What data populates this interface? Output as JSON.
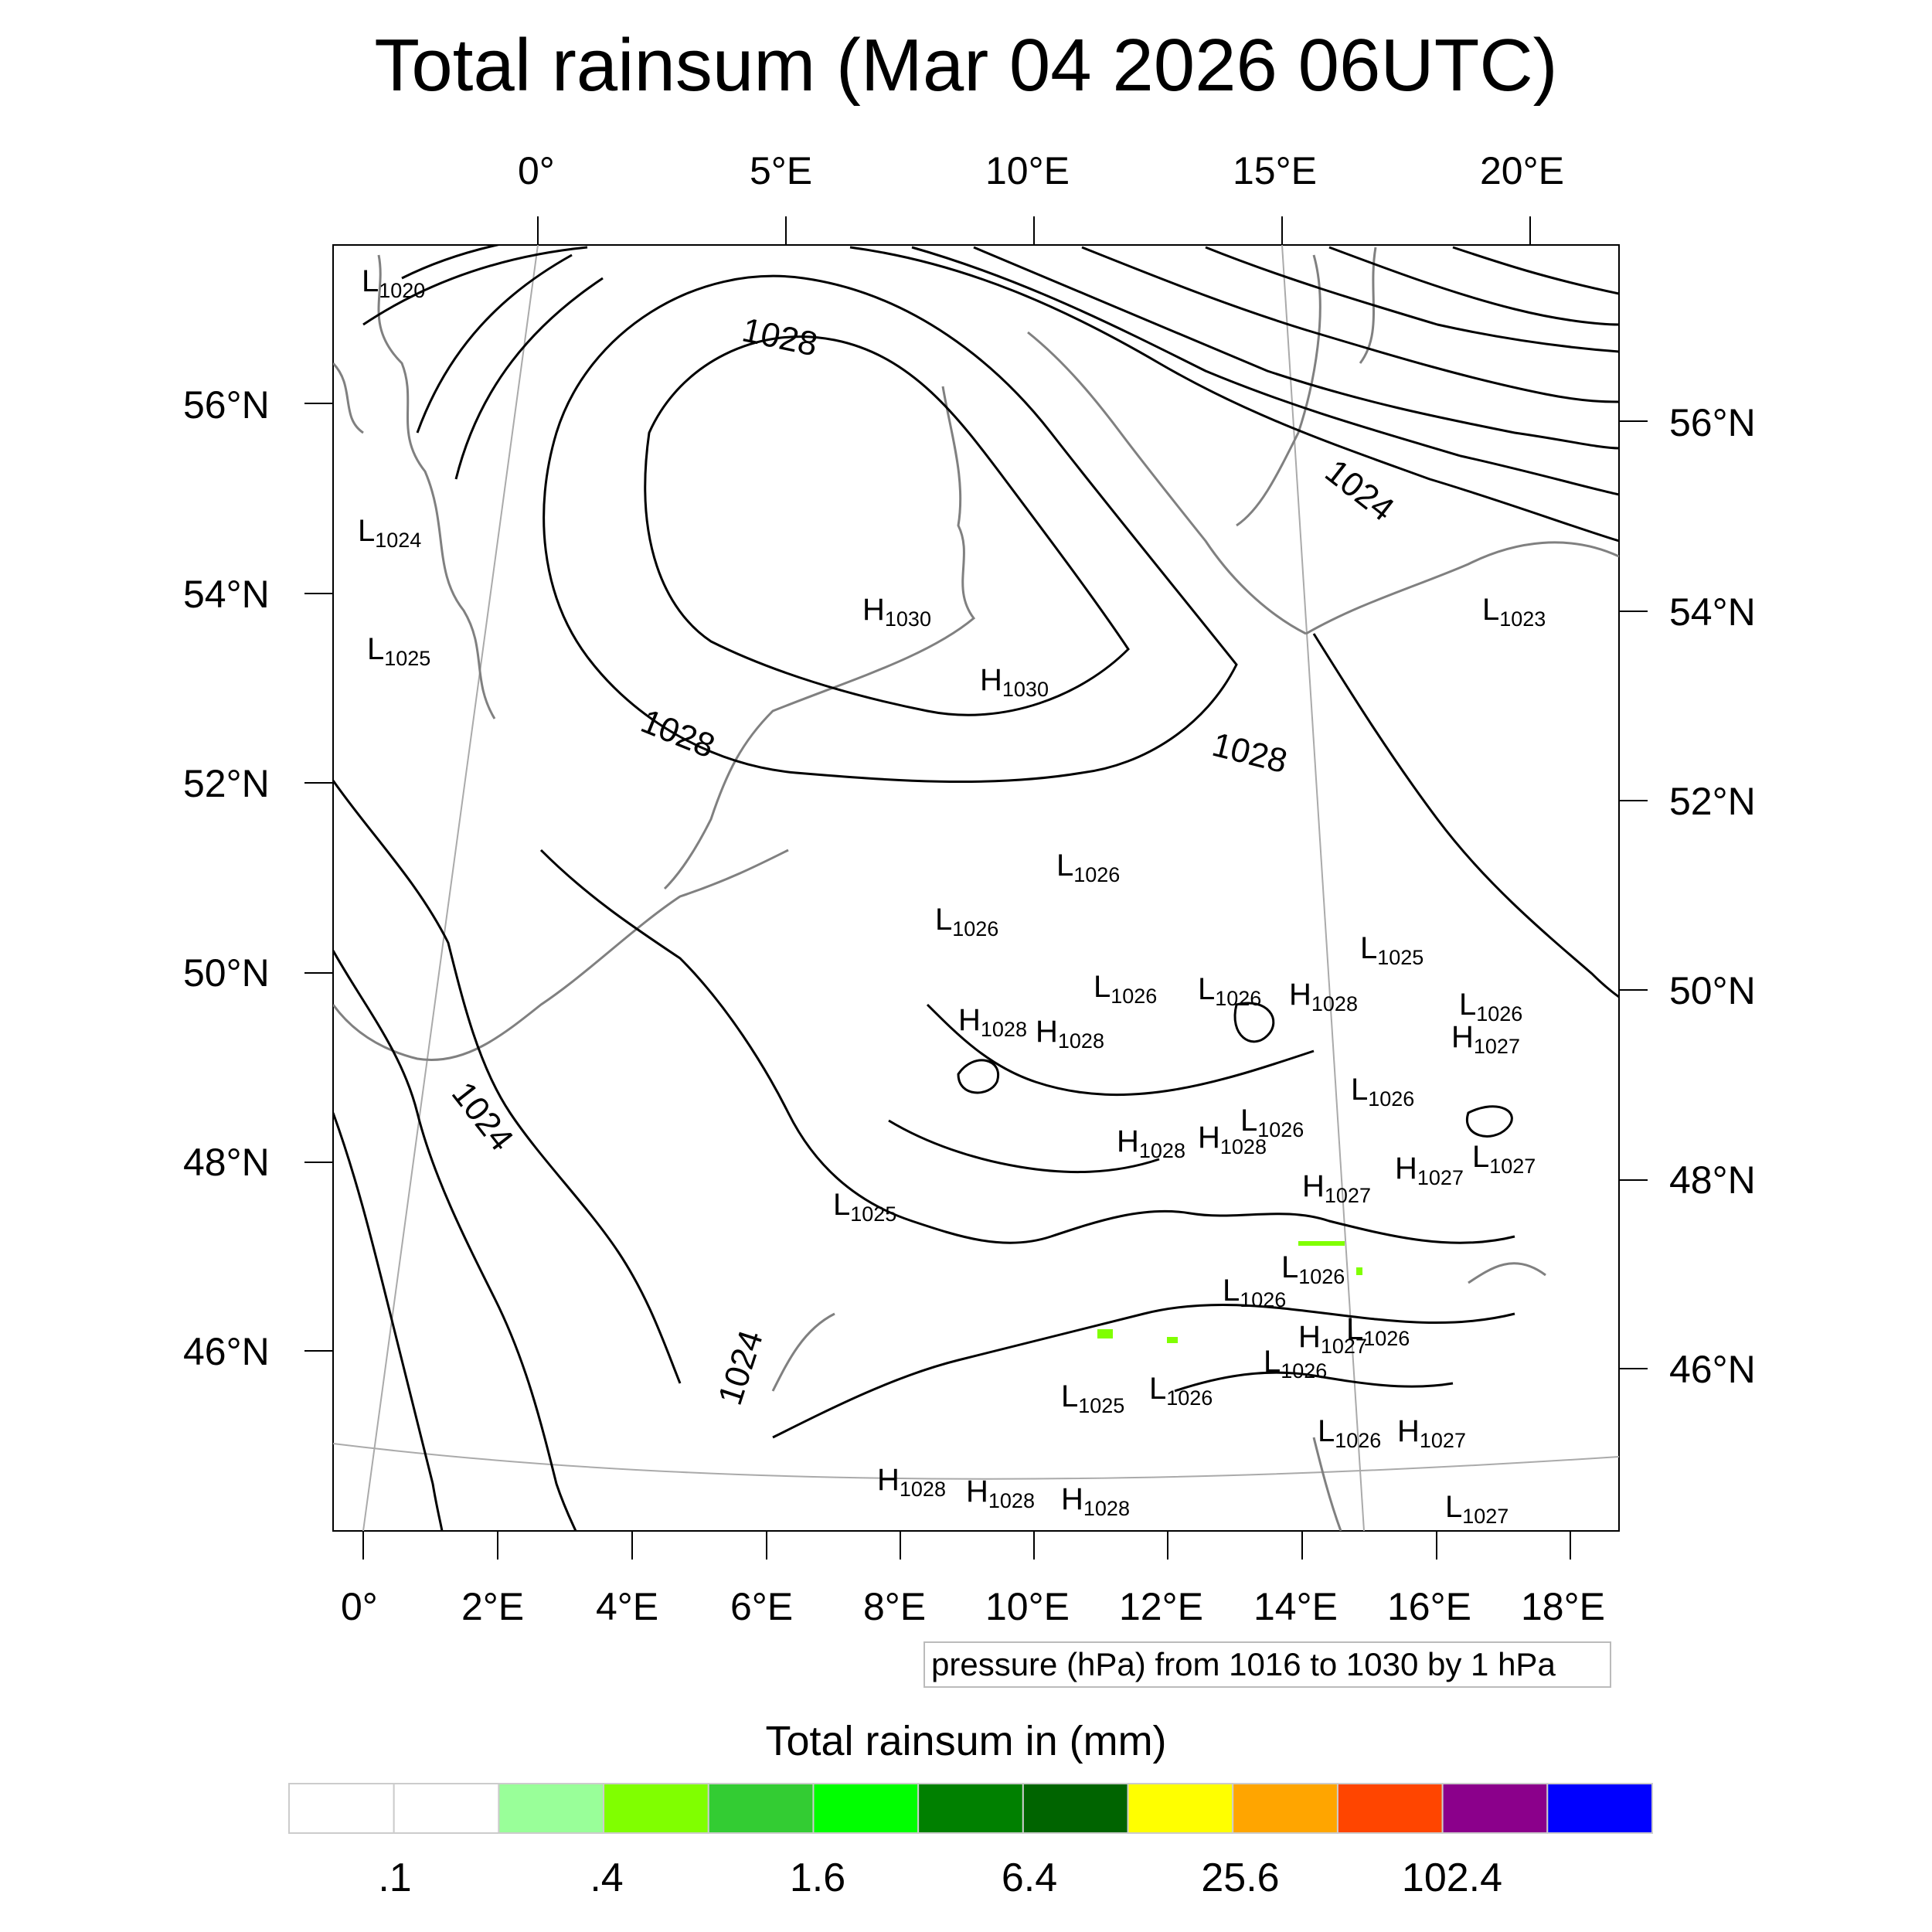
{
  "title": "Total rainsum (Mar 04 2026 06UTC)",
  "top_lon_labels": [
    "0°",
    "5°E",
    "10°E",
    "15°E",
    "20°E"
  ],
  "bottom_lon_labels": [
    "0°",
    "2°E",
    "4°E",
    "6°E",
    "8°E",
    "10°E",
    "12°E",
    "14°E",
    "16°E",
    "18°E"
  ],
  "left_lat_labels": [
    "56°N",
    "54°N",
    "52°N",
    "50°N",
    "48°N",
    "46°N"
  ],
  "right_lat_labels": [
    "56°N",
    "54°N",
    "52°N",
    "50°N",
    "48°N",
    "46°N"
  ],
  "contour_info": "pressure (hPa) from 1016 to 1030 by 1 hPa",
  "isobar_labels": [
    "1028",
    "1028",
    "1028",
    "1024",
    "1024",
    "1024"
  ],
  "pressure_centers": [
    {
      "type": "L",
      "value": "1020"
    },
    {
      "type": "L",
      "value": "1024"
    },
    {
      "type": "L",
      "value": "1025"
    },
    {
      "type": "H",
      "value": "1030"
    },
    {
      "type": "H",
      "value": "1030"
    },
    {
      "type": "L",
      "value": "1023"
    },
    {
      "type": "L",
      "value": "1026"
    },
    {
      "type": "L",
      "value": "1026"
    },
    {
      "type": "L",
      "value": "1025"
    },
    {
      "type": "L",
      "value": "1026"
    },
    {
      "type": "L",
      "value": "1026"
    },
    {
      "type": "H",
      "value": "1028"
    },
    {
      "type": "H",
      "value": "1028"
    },
    {
      "type": "H",
      "value": "1028"
    },
    {
      "type": "L",
      "value": "1026"
    },
    {
      "type": "H",
      "value": "1027"
    },
    {
      "type": "L",
      "value": "1026"
    },
    {
      "type": "H",
      "value": "1028"
    },
    {
      "type": "H",
      "value": "1028"
    },
    {
      "type": "L",
      "value": "1026"
    },
    {
      "type": "L",
      "value": "1027"
    },
    {
      "type": "H",
      "value": "1027"
    },
    {
      "type": "H",
      "value": "1027"
    },
    {
      "type": "L",
      "value": "1025"
    },
    {
      "type": "L",
      "value": "1026"
    },
    {
      "type": "L",
      "value": "1026"
    },
    {
      "type": "L",
      "value": "1026"
    },
    {
      "type": "H",
      "value": "1027"
    },
    {
      "type": "L",
      "value": "1026"
    },
    {
      "type": "L",
      "value": "1025"
    },
    {
      "type": "L",
      "value": "1026"
    },
    {
      "type": "L",
      "value": "1026"
    },
    {
      "type": "H",
      "value": "1027"
    },
    {
      "type": "H",
      "value": "1028"
    },
    {
      "type": "H",
      "value": "1028"
    },
    {
      "type": "H",
      "value": "1028"
    },
    {
      "type": "L",
      "value": "1027"
    }
  ],
  "colorbar": {
    "title": "Total rainsum in (mm)",
    "colors": [
      "#ffffff",
      "#ffffff",
      "#99ff99",
      "#80ff00",
      "#33cc33",
      "#00ff00",
      "#008000",
      "#006400",
      "#ffff00",
      "#ffa500",
      "#ff4500",
      "#8b008b",
      "#0000ff"
    ],
    "labels": [
      ".1",
      ".4",
      "1.6",
      "6.4",
      "25.6",
      "102.4"
    ]
  },
  "colors": {
    "isobar": "#000000",
    "coastline": "#808080",
    "graticule": "#aaaaaa",
    "rain_light": "#80ff00"
  }
}
